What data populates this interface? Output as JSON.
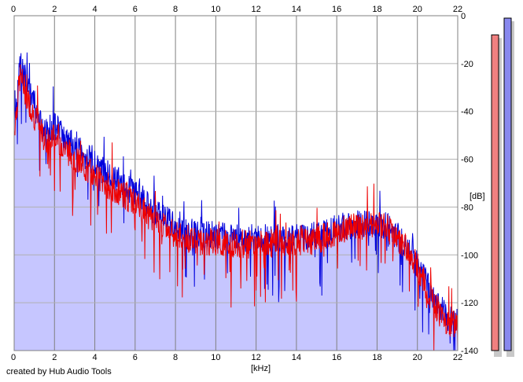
{
  "credit": "created by Hub Audio Tools",
  "colors": {
    "left_channel": "#ee0000",
    "right_channel": "#0000dd",
    "fill": "#c6c6ff",
    "meter_left": "#f08080",
    "meter_right": "#8888ee"
  },
  "chart_data": {
    "type": "line",
    "xlabel": "[kHz]",
    "ylabel": "[dB]",
    "xlim": [
      0,
      22
    ],
    "ylim": [
      -140,
      0
    ],
    "x_ticks": [
      0,
      2,
      4,
      6,
      8,
      10,
      12,
      14,
      16,
      18,
      20,
      22
    ],
    "y_ticks": [
      0,
      -20,
      -40,
      -60,
      -80,
      -100,
      -120,
      -140
    ],
    "grid": true,
    "x": [
      0,
      0.3,
      0.6,
      1,
      1.5,
      2,
      3,
      4,
      5,
      6,
      7,
      8,
      9,
      10,
      11,
      12,
      13,
      14,
      15,
      16,
      17,
      18,
      18.5,
      19,
      19.5,
      20,
      20.5,
      21,
      21.5,
      22
    ],
    "series": [
      {
        "values": [
          -48,
          -25,
          -33,
          -42,
          -52,
          -50,
          -60,
          -67,
          -73,
          -78,
          -86,
          -92,
          -94,
          -95,
          -95,
          -96,
          -95,
          -95,
          -94,
          -90,
          -88,
          -87,
          -89,
          -93,
          -98,
          -105,
          -115,
          -123,
          -128,
          -130
        ]
      },
      {
        "values": [
          -45,
          -20,
          -28,
          -38,
          -48,
          -46,
          -55,
          -62,
          -68,
          -74,
          -82,
          -88,
          -91,
          -92,
          -93,
          -93,
          -93,
          -93,
          -92,
          -89,
          -87,
          -86,
          -88,
          -92,
          -97,
          -104,
          -113,
          -121,
          -126,
          -128
        ]
      }
    ],
    "meters": [
      {
        "level_db": -8
      },
      {
        "level_db": -1
      }
    ]
  }
}
